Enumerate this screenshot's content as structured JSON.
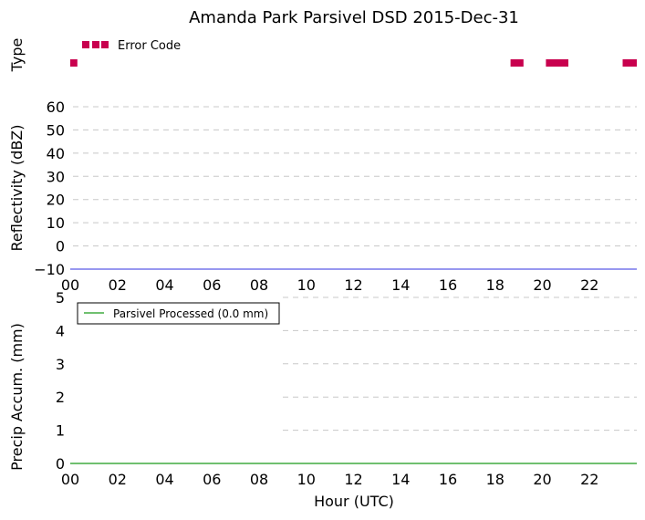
{
  "figure": {
    "title": "Amanda Park Parsivel DSD 2015-Dec-31",
    "xlabel": "Hour (UTC)"
  },
  "chart_data": [
    {
      "type": "bar",
      "panel": "type",
      "ylabel": "Type",
      "legend": {
        "label": "Error Code",
        "placement": "top-left"
      },
      "xlim": [
        0,
        24
      ],
      "series": [
        {
          "name": "Error Code",
          "color": "#c8004e",
          "intervals": [
            [
              0.0,
              0.3
            ],
            [
              18.65,
              19.2
            ],
            [
              20.15,
              21.1
            ],
            [
              23.4,
              24.0
            ]
          ]
        }
      ]
    },
    {
      "type": "line",
      "panel": "reflectivity",
      "ylabel": "Reflectivity (dBZ)",
      "xlim": [
        0,
        24
      ],
      "ylim": [
        -10,
        60
      ],
      "yticks": [
        "−10",
        "0",
        "10",
        "20",
        "30",
        "40",
        "50",
        "60"
      ],
      "xticks": [
        "00",
        "02",
        "04",
        "06",
        "08",
        "10",
        "12",
        "14",
        "16",
        "18",
        "20",
        "22"
      ],
      "grid": true,
      "series": [
        {
          "color": "#5a5ae6",
          "x": [
            0,
            24
          ],
          "y": [
            -10,
            -10
          ]
        }
      ]
    },
    {
      "type": "line",
      "panel": "precip",
      "ylabel": "Precip Accum. (mm)",
      "xlim": [
        0,
        24
      ],
      "ylim": [
        0,
        5
      ],
      "yticks": [
        "0",
        "1",
        "2",
        "3",
        "4",
        "5"
      ],
      "xticks": [
        "00",
        "02",
        "04",
        "06",
        "08",
        "10",
        "12",
        "14",
        "16",
        "18",
        "20",
        "22"
      ],
      "grid": true,
      "legend": {
        "label": "Parsivel Processed (0.0 mm)",
        "placement": "top-left"
      },
      "series": [
        {
          "name": "Parsivel Processed (0.0 mm)",
          "color": "#1a9a1a",
          "x": [
            0,
            24
          ],
          "y": [
            0,
            0
          ]
        }
      ]
    }
  ]
}
